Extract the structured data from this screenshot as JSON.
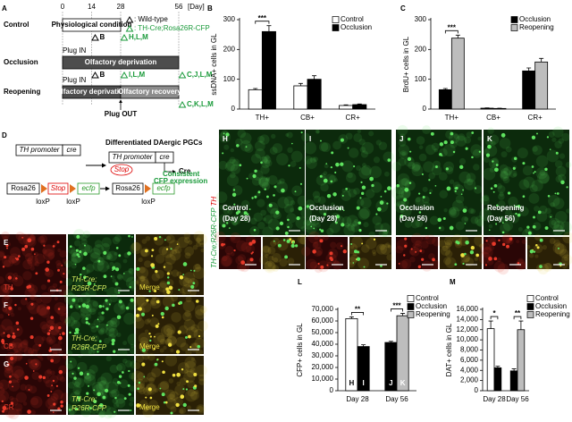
{
  "panel_letters": [
    "A",
    "B",
    "C",
    "D",
    "E",
    "F",
    "G",
    "H",
    "I",
    "J",
    "K",
    "L",
    "M"
  ],
  "timeline": {
    "ticks": [
      0,
      14,
      28,
      56
    ],
    "unit": "[Day]",
    "rows": [
      {
        "label": "Control",
        "segments": [
          {
            "start": 0,
            "end": 28,
            "label": "Physiological condition",
            "color": "#ffffff"
          }
        ],
        "events": [],
        "markers": [
          {
            "day": 14,
            "label": "B",
            "kind": "wt"
          },
          {
            "day": 28,
            "label": "H,L,M",
            "kind": "tg"
          }
        ]
      },
      {
        "label": "Occlusion",
        "segments": [
          {
            "start": 0,
            "end": 56,
            "label": "Olfactory deprivation",
            "color": "#4d4d4d"
          }
        ],
        "events": [
          {
            "day": 0,
            "label": "Plug IN"
          }
        ],
        "markers": [
          {
            "day": 14,
            "label": "B",
            "kind": "wt"
          },
          {
            "day": 28,
            "label": "I,L,M",
            "kind": "tg"
          },
          {
            "day": 56,
            "label": "C,J,L,M",
            "kind": "tg"
          }
        ]
      },
      {
        "label": "Reopening",
        "segments": [
          {
            "start": 0,
            "end": 28,
            "label": "Olfactory deprivation",
            "color": "#4d4d4d"
          },
          {
            "start": 28,
            "end": 56,
            "label": "Olfactory recovery",
            "color": "#8c8c8c"
          }
        ],
        "events": [
          {
            "day": 0,
            "label": "Plug IN"
          },
          {
            "day": 28,
            "label": "Plug OUT"
          }
        ],
        "markers": [
          {
            "day": 56,
            "label": "C,K,L,M",
            "kind": "tg"
          }
        ]
      }
    ],
    "legend": [
      {
        "kind": "wt",
        "label": ": Wild-type",
        "color": "#000000"
      },
      {
        "kind": "tg",
        "label": ": TH-Cre;Rosa26R-CFP",
        "color": "#1a9a3a"
      }
    ]
  },
  "diagram": {
    "title": "Differentiated DAergic PGCs",
    "transgene": [
      "TH promoter",
      "cre"
    ],
    "recombined_transgene": [
      "TH promoter",
      "cre"
    ],
    "cre_label": "Cre",
    "reporter": [
      "Rosa26",
      "Stop",
      "ecfp"
    ],
    "loxp": [
      "loxP",
      "loxP"
    ],
    "excised": "Stop",
    "recombined_reporter": [
      "Rosa26",
      "ecfp"
    ],
    "recombined_loxp": "loxP",
    "result": [
      "Consistent",
      "CFP expression"
    ]
  },
  "staining": [
    {
      "marker": "TH",
      "reporter": [
        "TH-Cre;",
        "R26R-CFP"
      ],
      "merge": "Merge"
    },
    {
      "marker": "CB",
      "reporter": [
        "TH-Cre;",
        "R26R-CFP"
      ],
      "merge": "Merge"
    },
    {
      "marker": "CR",
      "reporter": [
        "TH-Cre;",
        "R26R-CFP"
      ],
      "merge": "Merge"
    }
  ],
  "conditions": [
    [
      "Control",
      "(Day 28)"
    ],
    [
      "Occlusion",
      "(Day 28)"
    ],
    [
      "Occlusion",
      "(Day 56)"
    ],
    [
      "Reopening",
      "(Day 56)"
    ]
  ],
  "stain_label": [
    "TH-Cre;R26R-CFP",
    "TH"
  ],
  "chart_data": [
    {
      "type": "bar",
      "y_label": "ssDNA+ cells in GL",
      "categories": [
        "TH+",
        "CB+",
        "CR+"
      ],
      "series": [
        {
          "name": "Control",
          "color": "#ffffff",
          "values": [
            65,
            78,
            12
          ],
          "errors": [
            4,
            8,
            2
          ]
        },
        {
          "name": "Occlusion",
          "color": "#000000",
          "values": [
            260,
            100,
            15
          ],
          "errors": [
            20,
            12,
            2
          ]
        }
      ],
      "ylim": [
        0,
        300
      ],
      "yticks": [
        0,
        100,
        200,
        300
      ],
      "significance": [
        "***",
        null,
        null
      ],
      "legend": "upper right"
    },
    {
      "type": "bar",
      "y_label": "BrdU+ cells in GL",
      "categories": [
        "TH+",
        "CB+",
        "CR+"
      ],
      "series": [
        {
          "name": "Occlusion",
          "color": "#000000",
          "values": [
            65,
            3,
            128
          ],
          "errors": [
            4,
            1,
            10
          ]
        },
        {
          "name": "Reopening",
          "color": "#bdbdbd",
          "values": [
            238,
            2,
            158
          ],
          "errors": [
            10,
            1,
            12
          ]
        }
      ],
      "ylim": [
        0,
        300
      ],
      "yticks": [
        0,
        100,
        200,
        300
      ],
      "significance": [
        "***",
        null,
        null
      ],
      "legend": "upper right"
    },
    {
      "type": "bar",
      "y_label": "CFP+ cells in GL",
      "categories": [
        "Day 28",
        "Day 56"
      ],
      "series": [
        {
          "name": "Control",
          "color": "#ffffff",
          "values": [
            62000,
            null
          ],
          "errors": [
            1500,
            null
          ],
          "bar_labels": [
            "H",
            null
          ]
        },
        {
          "name": "Occlusion",
          "color": "#000000",
          "values": [
            38000,
            41500
          ],
          "errors": [
            1500,
            1000
          ],
          "bar_labels": [
            "I",
            "J"
          ]
        },
        {
          "name": "Reopening",
          "color": "#bdbdbd",
          "values": [
            null,
            64500
          ],
          "errors": [
            null,
            2000
          ],
          "bar_labels": [
            null,
            "K"
          ]
        }
      ],
      "ylim": [
        0,
        70000
      ],
      "yticks": [
        0,
        {
          "value": 10000,
          "label": "10,000"
        },
        {
          "value": 20000,
          "label": "20,000"
        },
        {
          "value": 30000,
          "label": "30,000"
        },
        {
          "value": 40000,
          "label": "40,000"
        },
        {
          "value": 50000,
          "label": "50,000"
        },
        {
          "value": 60000,
          "label": "60,000"
        },
        {
          "value": 70000,
          "label": "70,000"
        }
      ],
      "significance": [
        "**",
        "***"
      ],
      "legend": "upper right"
    },
    {
      "type": "bar",
      "y_label": "DAT+ cells in GL",
      "categories": [
        "Day 28",
        "Day 56"
      ],
      "series": [
        {
          "name": "Control",
          "color": "#ffffff",
          "values": [
            12200,
            null
          ],
          "errors": [
            1500,
            null
          ]
        },
        {
          "name": "Occlusion",
          "color": "#000000",
          "values": [
            4500,
            3900
          ],
          "errors": [
            300,
            400
          ]
        },
        {
          "name": "Reopening",
          "color": "#bdbdbd",
          "values": [
            null,
            12000
          ],
          "errors": [
            null,
            1700
          ]
        }
      ],
      "ylim": [
        0,
        16000
      ],
      "yticks": [
        0,
        {
          "value": 2000,
          "label": "2,000"
        },
        {
          "value": 4000,
          "label": "4,000"
        },
        {
          "value": 6000,
          "label": "6,000"
        },
        {
          "value": 8000,
          "label": "8,000"
        },
        {
          "value": 10000,
          "label": "10,000"
        },
        {
          "value": 12000,
          "label": "12,000"
        },
        {
          "value": 14000,
          "label": "14,000"
        },
        {
          "value": 16000,
          "label": "16,000"
        }
      ],
      "significance": [
        "*",
        "**"
      ],
      "legend": "upper right"
    }
  ]
}
